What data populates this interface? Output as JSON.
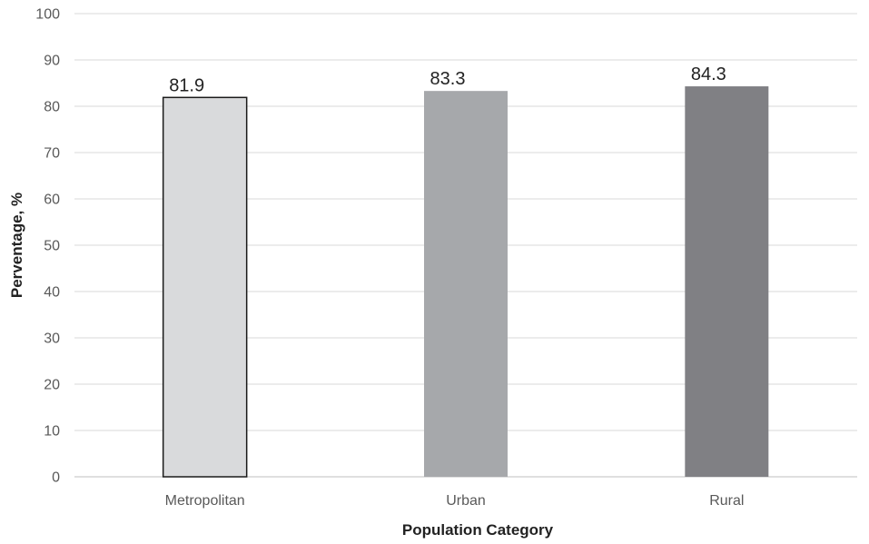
{
  "chart_data": {
    "type": "bar",
    "title": "",
    "xlabel": "Population Category",
    "ylabel": "Perventage, %",
    "categories": [
      "Metropolitan",
      "Urban",
      "Rural"
    ],
    "values": [
      81.9,
      83.3,
      84.3
    ],
    "value_labels": [
      "81.9",
      "83.3",
      "84.3"
    ],
    "ylim": [
      0,
      100
    ],
    "yticks": [
      0,
      10,
      20,
      30,
      40,
      50,
      60,
      70,
      80,
      90,
      100
    ],
    "grid": true,
    "legend": "none",
    "bar_colors": [
      "#d9dadc",
      "#a6a8ab",
      "#808084"
    ],
    "bar_outline": [
      "#1a1a1a",
      null,
      null
    ],
    "grid_color": "#d9d9d9"
  }
}
